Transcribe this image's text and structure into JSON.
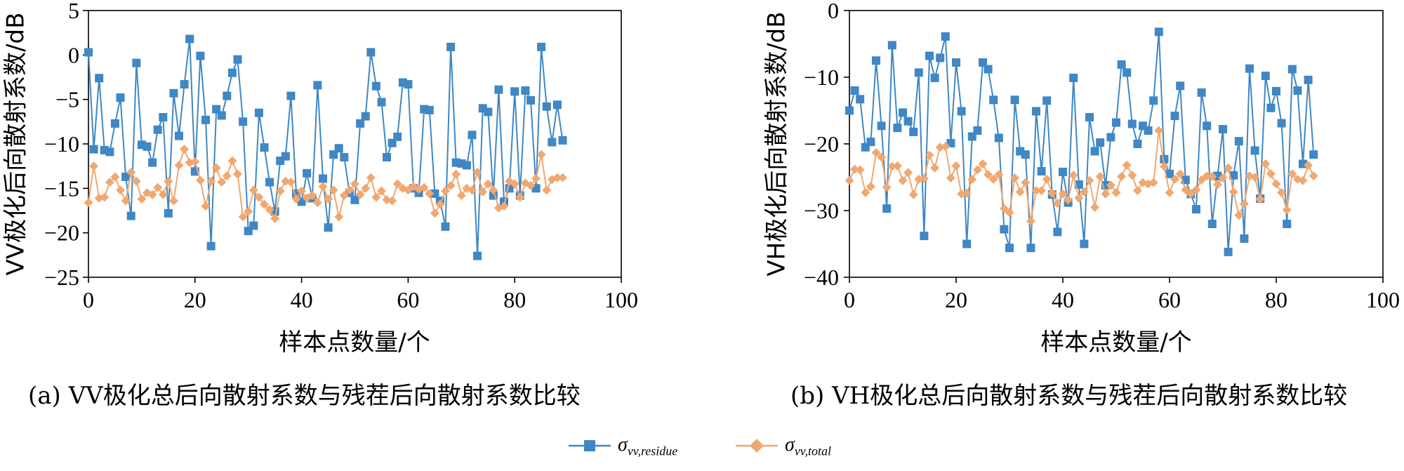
{
  "colors": {
    "residue": "#3f87c5",
    "total": "#f0a870",
    "axis": "#000000"
  },
  "captions": {
    "a": "(a) VV极化总后向散射系数与残茬后向散射系数比较",
    "b": "(b) VH极化总后向散射系数与残茬后向散射系数比较"
  },
  "legend": {
    "residue": {
      "symbol": "σ",
      "sub": "vv,residue"
    },
    "total": {
      "symbol": "σ",
      "sub": "vv,total"
    }
  },
  "chart_data": [
    {
      "type": "line",
      "ylabel": "VV极化后向散射系数/dB",
      "xlabel": "样本点数量/个",
      "xlim": [
        0,
        100
      ],
      "ylim": [
        -25,
        5
      ],
      "xticks": [
        "0",
        "20",
        "40",
        "60",
        "80",
        "100"
      ],
      "yticks": [
        "5",
        "0",
        "-5",
        "-10",
        "-15",
        "-20",
        "-25"
      ],
      "grid": false,
      "series": [
        {
          "key": "residue",
          "marker": "square",
          "values": [
            0.3,
            -10.6,
            -2.6,
            -10.7,
            -10.9,
            -7.7,
            -4.8,
            -13.7,
            -18.1,
            -0.9,
            -10.1,
            -10.3,
            -12.1,
            -8.4,
            -7.0,
            -17.8,
            -4.3,
            -9.1,
            -3.3,
            1.8,
            -13.1,
            -0.1,
            -7.3,
            -21.5,
            -6.1,
            -6.8,
            -4.6,
            -2.0,
            -0.5,
            -7.5,
            -19.8,
            -19.2,
            -6.5,
            -10.4,
            -14.3,
            -17.6,
            -11.9,
            -11.4,
            -4.6,
            -15.6,
            -16.5,
            -13.3,
            -16.1,
            -3.4,
            -13.9,
            -19.4,
            -11.2,
            -10.5,
            -11.5,
            -15.5,
            -16.3,
            -7.7,
            -6.9,
            0.3,
            -3.5,
            -5.3,
            -11.5,
            -9.9,
            -9.2,
            -3.1,
            -3.3,
            -15.0,
            -15.5,
            -6.1,
            -6.2,
            -15.6,
            -16.4,
            -19.3,
            0.9,
            -12.1,
            -12.2,
            -12.4,
            -9.0,
            -22.6,
            -6.0,
            -6.4,
            -15.8,
            -3.9,
            -16.5,
            -15.0,
            -4.1,
            -15.8,
            -4.0,
            -5.1,
            -15.0,
            0.9,
            -5.8,
            -9.8,
            -5.6,
            -9.6
          ]
        },
        {
          "key": "total",
          "marker": "diamond",
          "values": [
            -16.6,
            -12.5,
            -16.1,
            -16.0,
            -14.3,
            -13.7,
            -15.2,
            -16.4,
            -13.2,
            -14.2,
            -16.2,
            -15.5,
            -15.7,
            -14.9,
            -15.7,
            -14.2,
            -16.4,
            -12.4,
            -10.6,
            -12.1,
            -12.0,
            -14.1,
            -17.0,
            -14.2,
            -12.7,
            -14.3,
            -13.6,
            -11.9,
            -13.4,
            -18.2,
            -17.6,
            -15.2,
            -16.0,
            -16.8,
            -17.4,
            -18.4,
            -15.3,
            -14.2,
            -14.3,
            -16.2,
            -15.3,
            -16.1,
            -15.8,
            -16.6,
            -14.8,
            -16.2,
            -15.2,
            -18.2,
            -15.8,
            -15.2,
            -14.5,
            -15.7,
            -15.0,
            -13.8,
            -16.0,
            -15.3,
            -16.3,
            -16.4,
            -14.5,
            -15.0,
            -15.2,
            -14.8,
            -15.1,
            -14.9,
            -15.6,
            -17.8,
            -16.8,
            -15.3,
            -14.7,
            -13.4,
            -15.8,
            -15.0,
            -15.2,
            -13.2,
            -15.4,
            -14.5,
            -15.2,
            -17.2,
            -17.0,
            -14.2,
            -14.5,
            -16.0,
            -14.4,
            -14.7,
            -13.9,
            -11.2,
            -15.2,
            -14.0,
            -13.8,
            -13.8
          ]
        }
      ]
    },
    {
      "type": "line",
      "ylabel": "VH极化后向散射系数/dB",
      "xlabel": "样本点数量/个",
      "xlim": [
        0,
        100
      ],
      "ylim": [
        -40,
        0
      ],
      "xticks": [
        "0",
        "20",
        "40",
        "60",
        "80",
        "100"
      ],
      "yticks": [
        "0",
        "-10",
        "-20",
        "-30",
        "-40"
      ],
      "grid": false,
      "series": [
        {
          "key": "residue",
          "marker": "square",
          "values": [
            -15.0,
            -12.0,
            -13.3,
            -20.5,
            -19.7,
            -7.5,
            -17.3,
            -29.7,
            -5.2,
            -17.6,
            -15.3,
            -16.6,
            -18.2,
            -9.3,
            -33.8,
            -6.8,
            -10.1,
            -7.1,
            -3.9,
            -19.9,
            -7.8,
            -15.1,
            -35.0,
            -18.9,
            -18.0,
            -7.8,
            -8.8,
            -13.4,
            -19.1,
            -32.8,
            -35.6,
            -13.4,
            -21.1,
            -21.6,
            -35.6,
            -15.1,
            -24.1,
            -13.5,
            -27.6,
            -33.2,
            -24.2,
            -28.8,
            -10.1,
            -26.1,
            -35.0,
            -16.0,
            -21.1,
            -19.8,
            -26.2,
            -19.0,
            -16.8,
            -8.1,
            -9.3,
            -17.0,
            -20.0,
            -17.3,
            -18.0,
            -13.5,
            -3.2,
            -22.3,
            -24.5,
            -15.8,
            -11.3,
            -25.4,
            -27.5,
            -29.8,
            -12.3,
            -17.3,
            -32.0,
            -24.8,
            -17.8,
            -36.2,
            -24.7,
            -19.6,
            -34.2,
            -8.7,
            -21.0,
            -28.2,
            -9.8,
            -14.6,
            -12.1,
            -16.9,
            -32.0,
            -8.8,
            -12.0,
            -23.0,
            -10.4,
            -21.6
          ]
        },
        {
          "key": "total",
          "marker": "diamond",
          "values": [
            -25.5,
            -23.8,
            -23.9,
            -27.3,
            -26.4,
            -21.3,
            -22.0,
            -26.5,
            -23.4,
            -23.3,
            -25.5,
            -24.3,
            -27.6,
            -25.3,
            -25.2,
            -21.7,
            -23.6,
            -20.5,
            -20.4,
            -25.1,
            -23.3,
            -27.5,
            -27.4,
            -25.3,
            -23.9,
            -23.0,
            -24.6,
            -25.3,
            -24.6,
            -29.7,
            -30.3,
            -25.1,
            -27.2,
            -25.8,
            -31.6,
            -27.0,
            -27.0,
            -25.3,
            -27.4,
            -28.9,
            -27.5,
            -28.4,
            -24.7,
            -28.1,
            -27.2,
            -25.5,
            -29.5,
            -24.9,
            -27.5,
            -26.2,
            -27.3,
            -24.9,
            -23.2,
            -24.7,
            -27.0,
            -25.8,
            -26.0,
            -25.8,
            -18.0,
            -23.4,
            -27.3,
            -25.3,
            -24.5,
            -26.9,
            -27.5,
            -26.9,
            -25.4,
            -24.8,
            -24.9,
            -26.1,
            -25.1,
            -23.6,
            -27.2,
            -30.7,
            -29.0,
            -24.8,
            -25.0,
            -28.3,
            -23.0,
            -24.5,
            -26.0,
            -27.3,
            -29.9,
            -24.5,
            -25.3,
            -25.5,
            -23.2,
            -24.8
          ]
        }
      ]
    }
  ]
}
